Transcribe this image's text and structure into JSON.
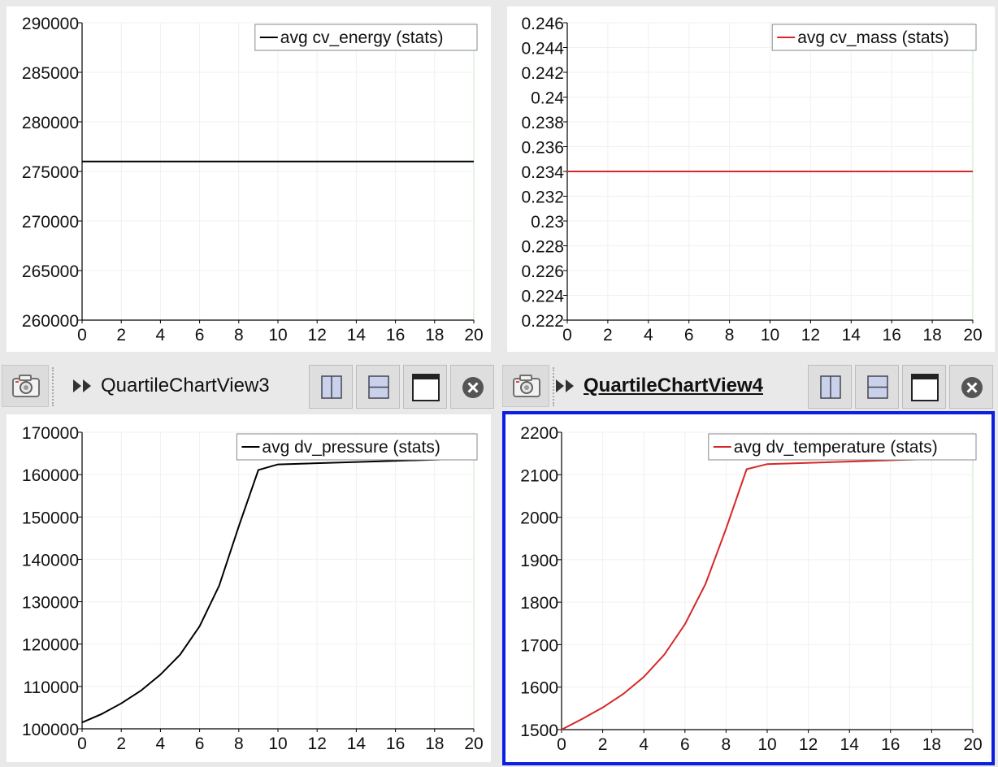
{
  "views": [
    {
      "id": "tl",
      "name": "",
      "active": false,
      "legend": "avg cv_energy (stats)",
      "chart_data": {
        "type": "line",
        "series": [
          {
            "name": "avg cv_energy (stats)",
            "color": "#000000",
            "x": [
              0,
              20
            ],
            "y": [
              276000,
              276000
            ]
          }
        ],
        "xlim": [
          0,
          20
        ],
        "ylim": [
          260000,
          290000
        ],
        "xticks": [
          0,
          2,
          4,
          6,
          8,
          10,
          12,
          14,
          16,
          18,
          20
        ],
        "yticks": [
          260000,
          265000,
          270000,
          275000,
          280000,
          285000,
          290000
        ],
        "ytick_labels": [
          "260000",
          "265000",
          "270000",
          "275000",
          "280000",
          "285000",
          "290000"
        ],
        "legend_position": "top-right",
        "grid": true
      }
    },
    {
      "id": "tr",
      "name": "",
      "active": false,
      "legend": "avg cv_mass (stats)",
      "chart_data": {
        "type": "line",
        "series": [
          {
            "name": "avg cv_mass (stats)",
            "color": "#d62728",
            "x": [
              0,
              20
            ],
            "y": [
              0.234,
              0.234
            ]
          }
        ],
        "xlim": [
          0,
          20
        ],
        "ylim": [
          0.222,
          0.246
        ],
        "xticks": [
          0,
          2,
          4,
          6,
          8,
          10,
          12,
          14,
          16,
          18,
          20
        ],
        "yticks": [
          0.222,
          0.224,
          0.226,
          0.228,
          0.23,
          0.232,
          0.234,
          0.236,
          0.238,
          0.24,
          0.242,
          0.244,
          0.246
        ],
        "ytick_labels": [
          "0.222",
          "0.224",
          "0.226",
          "0.228",
          "0.23",
          "0.232",
          "0.234",
          "0.236",
          "0.238",
          "0.24",
          "0.242",
          "0.244",
          "0.246"
        ],
        "legend_position": "top-right",
        "grid": true
      }
    },
    {
      "id": "bl",
      "name": "QuartileChartView3",
      "active": false,
      "legend": "avg dv_pressure (stats)",
      "chart_data": {
        "type": "line",
        "series": [
          {
            "name": "avg dv_pressure (stats)",
            "color": "#000000",
            "x": [
              0,
              1,
              2,
              3,
              4,
              5,
              6,
              7,
              8,
              9,
              10,
              20
            ],
            "y": [
              101500,
              103500,
              106000,
              109000,
              112800,
              117500,
              124200,
              133800,
              147800,
              161100,
              162400,
              163800
            ]
          }
        ],
        "xlim": [
          0,
          20
        ],
        "ylim": [
          100000,
          170000
        ],
        "xticks": [
          0,
          2,
          4,
          6,
          8,
          10,
          12,
          14,
          16,
          18,
          20
        ],
        "yticks": [
          100000,
          110000,
          120000,
          130000,
          140000,
          150000,
          160000,
          170000
        ],
        "ytick_labels": [
          "100000",
          "110000",
          "120000",
          "130000",
          "140000",
          "150000",
          "160000",
          "170000"
        ],
        "legend_position": "top-right",
        "grid": true
      }
    },
    {
      "id": "br",
      "name": "QuartileChartView4",
      "active": true,
      "legend": "avg dv_temperature (stats)",
      "chart_data": {
        "type": "line",
        "series": [
          {
            "name": "avg dv_temperature (stats)",
            "color": "#d62728",
            "x": [
              0,
              1,
              2,
              3,
              4,
              5,
              6,
              7,
              8,
              9,
              10,
              20
            ],
            "y": [
              1500,
              1525,
              1552,
              1584,
              1624,
              1677,
              1748,
              1843,
              1973,
              2113,
              2125,
              2140
            ]
          }
        ],
        "xlim": [
          0,
          20
        ],
        "ylim": [
          1500,
          2200
        ],
        "xticks": [
          0,
          2,
          4,
          6,
          8,
          10,
          12,
          14,
          16,
          18,
          20
        ],
        "yticks": [
          1500,
          1600,
          1700,
          1800,
          1900,
          2000,
          2100,
          2200
        ],
        "ytick_labels": [
          "1500",
          "1600",
          "1700",
          "1800",
          "1900",
          "2000",
          "2100",
          "2200"
        ],
        "legend_position": "top-right",
        "grid": true
      }
    }
  ],
  "toolbar": {
    "icons": [
      "camera-icon",
      "chevron-double-right-icon",
      "split-horizontal-icon",
      "split-vertical-icon",
      "maximize-icon",
      "close-icon"
    ]
  }
}
